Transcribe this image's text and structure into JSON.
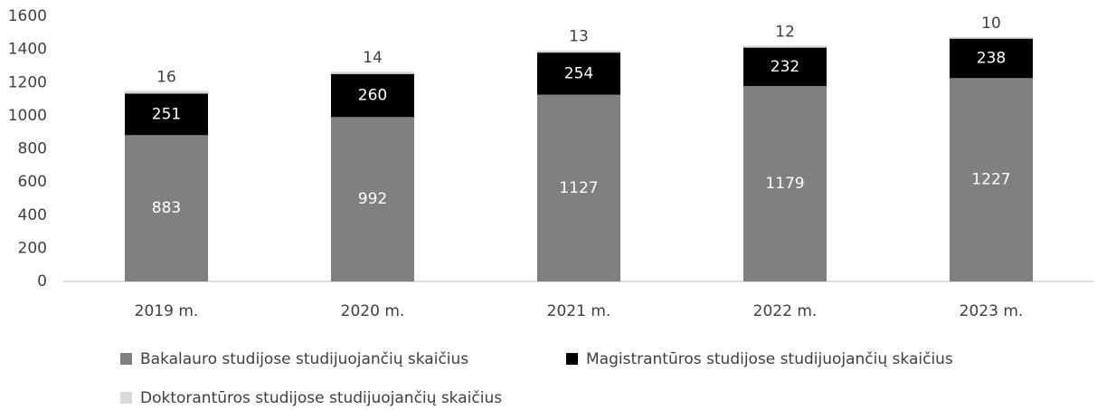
{
  "chart_data": {
    "type": "stacked_bar",
    "categories": [
      "2019 m.",
      "2020 m.",
      "2021 m.",
      "2022  m.",
      "2023 m."
    ],
    "series": [
      {
        "name": "Bakalauro studijose studijuojančių skaičius",
        "color": "#808080",
        "values": [
          883,
          992,
          1127,
          1179,
          1227
        ]
      },
      {
        "name": "Magistrantūros studijose studijuojančių skaičius",
        "color": "#000000",
        "values": [
          251,
          260,
          254,
          232,
          238
        ]
      },
      {
        "name": "Doktorantūros studijose studijuojančių skaičius",
        "color": "#d9d9d9",
        "values": [
          16,
          14,
          13,
          12,
          10
        ]
      }
    ],
    "ylim": [
      0,
      1600
    ],
    "yticks": [
      0,
      200,
      400,
      600,
      800,
      1000,
      1200,
      1400,
      1600
    ],
    "grid": false
  }
}
